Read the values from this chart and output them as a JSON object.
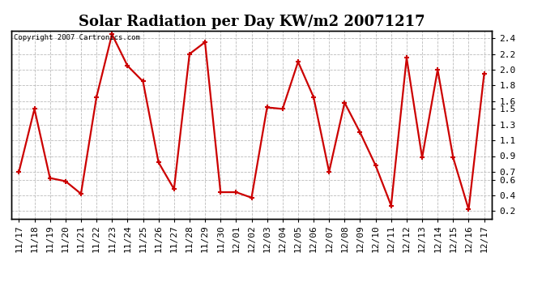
{
  "title": "Solar Radiation per Day KW/m2 20071217",
  "copyright_text": "Copyright 2007 Cartronics.com",
  "dates": [
    "11/17",
    "11/18",
    "11/19",
    "11/20",
    "11/21",
    "11/22",
    "11/23",
    "11/24",
    "11/25",
    "11/26",
    "11/27",
    "11/28",
    "11/29",
    "11/30",
    "12/01",
    "12/02",
    "12/03",
    "12/04",
    "12/05",
    "12/06",
    "12/07",
    "12/08",
    "12/09",
    "12/10",
    "12/11",
    "12/12",
    "12/13",
    "12/14",
    "12/15",
    "12/16",
    "12/17"
  ],
  "values": [
    0.7,
    1.5,
    0.62,
    0.58,
    0.42,
    1.65,
    2.45,
    2.05,
    1.85,
    0.82,
    0.48,
    2.2,
    2.35,
    0.44,
    0.44,
    0.37,
    1.52,
    1.5,
    2.1,
    1.65,
    0.7,
    1.58,
    1.2,
    0.78,
    0.27,
    2.15,
    0.88,
    2.0,
    0.88,
    0.22,
    1.95
  ],
  "ylim": [
    0.1,
    2.5
  ],
  "ytick_vals": [
    0.2,
    0.4,
    0.6,
    0.7,
    0.9,
    1.1,
    1.3,
    1.5,
    1.6,
    1.8,
    2.0,
    2.2,
    2.4
  ],
  "ytick_labels": [
    "0.2",
    "0.4",
    "0.6",
    "0.7",
    "0.9",
    "1.1",
    "1.3",
    "1.5",
    "1.6",
    "1.8",
    "2.0",
    "2.2",
    "2.4"
  ],
  "line_color": "#cc0000",
  "marker": "+",
  "marker_size": 5,
  "line_width": 1.6,
  "bg_color": "#ffffff",
  "plot_bg_color": "#f0f0f0",
  "grid_color": "#aaaaaa",
  "title_fontsize": 13,
  "tick_fontsize": 8,
  "copyright_fontsize": 6.5
}
